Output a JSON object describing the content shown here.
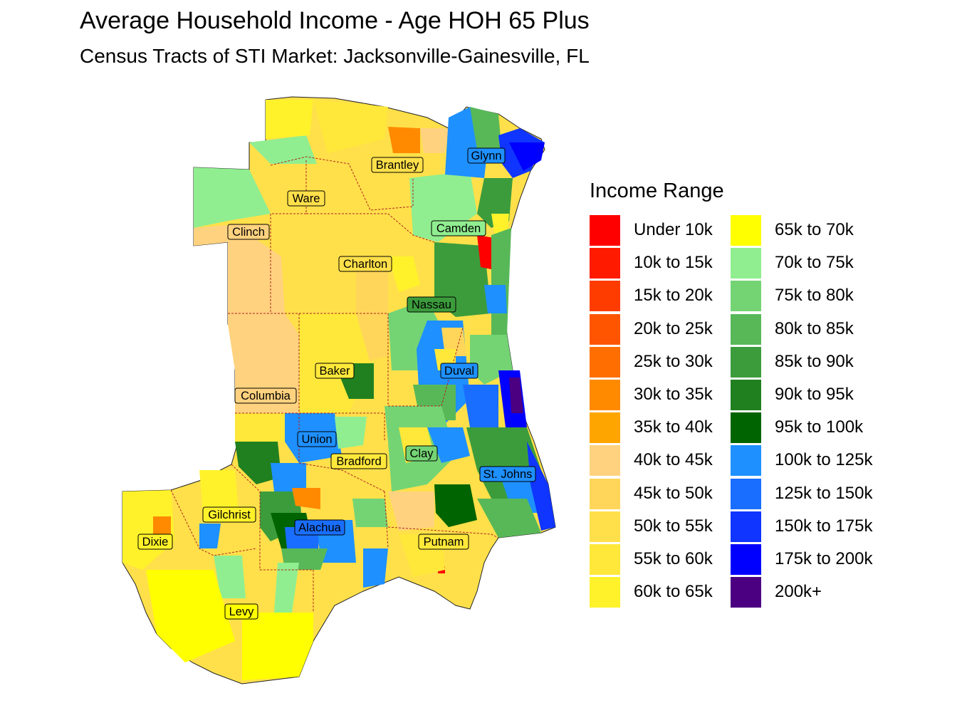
{
  "title": "Average Household Income - Age HOH 65 Plus",
  "subtitle": "Census Tracts of STI Market: Jacksonville-Gainesville, FL",
  "legend": {
    "title": "Income Range",
    "items": [
      {
        "label": "Under 10k",
        "color": "#FF0000"
      },
      {
        "label": "10k to 15k",
        "color": "#FF1A00"
      },
      {
        "label": "15k to 20k",
        "color": "#FF3C00"
      },
      {
        "label": "20k to 25k",
        "color": "#FF5500"
      },
      {
        "label": "25k to 30k",
        "color": "#FF6E00"
      },
      {
        "label": "30k to 35k",
        "color": "#FF8A00"
      },
      {
        "label": "35k to 40k",
        "color": "#FFA500"
      },
      {
        "label": "40k to 45k",
        "color": "#FFD27F"
      },
      {
        "label": "45k to 50k",
        "color": "#FFD65A"
      },
      {
        "label": "50k to 55k",
        "color": "#FFE04A"
      },
      {
        "label": "55k to 60k",
        "color": "#FFE83A"
      },
      {
        "label": "60k to 65k",
        "color": "#FFF22A"
      },
      {
        "label": "65k to 70k",
        "color": "#FFFF00"
      },
      {
        "label": "70k to 75k",
        "color": "#90EE90"
      },
      {
        "label": "75k to 80k",
        "color": "#74D474"
      },
      {
        "label": "80k to 85k",
        "color": "#58B858"
      },
      {
        "label": "85k to 90k",
        "color": "#3C9C3C"
      },
      {
        "label": "90k to 95k",
        "color": "#208020"
      },
      {
        "label": "95k to 100k",
        "color": "#006400"
      },
      {
        "label": "100k to 125k",
        "color": "#1E90FF"
      },
      {
        "label": "125k to 150k",
        "color": "#1A6EFF"
      },
      {
        "label": "150k to 175k",
        "color": "#0F35FF"
      },
      {
        "label": "175k to 200k",
        "color": "#0000FF"
      },
      {
        "label": "200k+",
        "color": "#4B0082"
      }
    ]
  },
  "counties": [
    {
      "name": "Brantley"
    },
    {
      "name": "Glynn"
    },
    {
      "name": "Ware"
    },
    {
      "name": "Clinch"
    },
    {
      "name": "Camden"
    },
    {
      "name": "Charlton"
    },
    {
      "name": "Nassau"
    },
    {
      "name": "Baker"
    },
    {
      "name": "Duval"
    },
    {
      "name": "Columbia"
    },
    {
      "name": "Union"
    },
    {
      "name": "Bradford"
    },
    {
      "name": "Clay"
    },
    {
      "name": "St. Johns"
    },
    {
      "name": "Gilchrist"
    },
    {
      "name": "Alachua"
    },
    {
      "name": "Dixie"
    },
    {
      "name": "Putnam"
    },
    {
      "name": "Levy"
    }
  ]
}
